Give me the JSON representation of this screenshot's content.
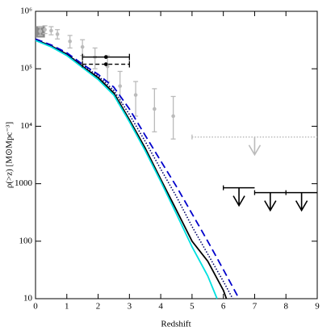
{
  "chart_data": {
    "type": "line",
    "xlabel": "Redshift",
    "ylabel": "ρ(>z) [M⊙Mpc⁻³]",
    "xlim": [
      0,
      9
    ],
    "xticks": [
      0,
      1,
      2,
      3,
      4,
      5,
      6,
      7,
      8,
      9
    ],
    "ylim": [
      10,
      1000000
    ],
    "log_y": true,
    "yticks": [
      {
        "value": 10,
        "label": "10"
      },
      {
        "value": 100,
        "label": "100"
      },
      {
        "value": 1000,
        "label": "1000"
      },
      {
        "value": 10000,
        "label": "10⁴"
      },
      {
        "value": 100000,
        "label": "10⁵"
      },
      {
        "value": 1000000,
        "label": "10⁶"
      }
    ],
    "series": [
      {
        "color": "#000000",
        "dash": "",
        "width": 1.8,
        "x": [
          0,
          0.5,
          1,
          1.5,
          2,
          2.5,
          3,
          3.5,
          4,
          4.5,
          5,
          5.5,
          6,
          6.1
        ],
        "values": [
          320000,
          250000,
          180000,
          110000,
          70000,
          38000,
          13000,
          4200,
          1200,
          350,
          100,
          45,
          14,
          10
        ]
      },
      {
        "color": "#0000cc",
        "dash": "9,5",
        "width": 1.8,
        "x": [
          0,
          0.5,
          1,
          1.5,
          2,
          2.5,
          3,
          3.5,
          4,
          4.5,
          5,
          5.5,
          6,
          6.5
        ],
        "values": [
          330000,
          260000,
          190000,
          120000,
          80000,
          48000,
          20000,
          7000,
          2500,
          900,
          300,
          100,
          32,
          10
        ]
      },
      {
        "color": "#000066",
        "dash": "1.5,2",
        "width": 1.6,
        "x": [
          0,
          0.5,
          1,
          1.5,
          2,
          2.5,
          3,
          3.5,
          4,
          4.5,
          5,
          5.5,
          6,
          6.3
        ],
        "values": [
          320000,
          250000,
          180000,
          115000,
          75000,
          42000,
          16000,
          5500,
          1800,
          600,
          180,
          60,
          20,
          10
        ]
      },
      {
        "color": "#00e0e0",
        "dash": "",
        "width": 1.8,
        "x": [
          0,
          0.5,
          1,
          1.5,
          2,
          2.5,
          3,
          3.5,
          4,
          4.5,
          5,
          5.5,
          5.8
        ],
        "values": [
          310000,
          240000,
          170000,
          105000,
          65000,
          35000,
          12000,
          3800,
          1100,
          300,
          80,
          25,
          10
        ]
      }
    ],
    "points": {
      "color": "#bbbbbb",
      "x": [
        0.15,
        0.3,
        0.5,
        0.7,
        1.1,
        1.5,
        1.9,
        2.3,
        2.7,
        3.2,
        3.8,
        4.4
      ],
      "values": [
        450000,
        480000,
        460000,
        400000,
        300000,
        240000,
        160000,
        110000,
        50000,
        35000,
        20000,
        15000
      ],
      "ylow": [
        380000,
        410000,
        390000,
        330000,
        230000,
        170000,
        100000,
        60000,
        25000,
        15000,
        8000,
        6000
      ],
      "yhigh": [
        530000,
        560000,
        540000,
        480000,
        380000,
        320000,
        230000,
        170000,
        90000,
        60000,
        45000,
        33000
      ]
    },
    "xerr_points": {
      "color": "#000000",
      "x": [
        2.25,
        2.25
      ],
      "values": [
        160000,
        120000
      ],
      "xlow": [
        1.5,
        1.5
      ],
      "xhigh": [
        3,
        3
      ],
      "dash": [
        "",
        "5,3"
      ]
    },
    "band": {
      "color": "#888888",
      "x": [
        0,
        0.3
      ],
      "y": [
        350000,
        550000
      ]
    },
    "upper_limits": [
      {
        "color": "#bbbbbb",
        "x0": 5,
        "x1": 9,
        "arrow_x": 7,
        "value": 6500,
        "dash": "1.5,2"
      },
      {
        "color": "#000000",
        "x0": 6,
        "x1": 7,
        "arrow_x": 6.5,
        "value": 850,
        "dash": ""
      },
      {
        "color": "#000000",
        "x0": 7,
        "x1": 8,
        "arrow_x": 7.5,
        "value": 700,
        "dash": ""
      },
      {
        "color": "#000000",
        "x0": 8,
        "x1": 9,
        "arrow_x": 8.5,
        "value": 700,
        "dash": ""
      }
    ]
  }
}
